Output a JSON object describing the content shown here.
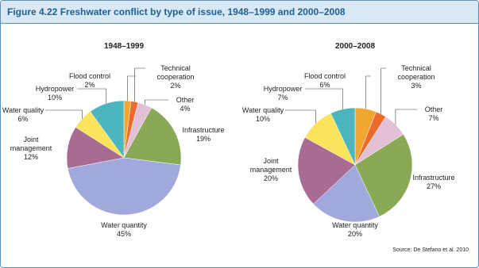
{
  "title": "Figure 4.22 Freshwater conflict by type of issue, 1948–1999 and 2000–2008",
  "source": "Source: De Stefano et al. 2010",
  "chart_data": [
    {
      "type": "pie",
      "title": "1948–1999",
      "categories": [
        "Flood control",
        "Technical cooperation",
        "Other",
        "Infrastructure",
        "Water quantity",
        "Joint management",
        "Water quality",
        "Hydropower"
      ],
      "values": [
        2,
        2,
        4,
        19,
        45,
        12,
        6,
        10
      ],
      "value_labels": [
        "2%",
        "2%",
        "4%",
        "19%",
        "45%",
        "12%",
        "6%",
        "10%"
      ],
      "colors": [
        "#f2a632",
        "#ec6a2c",
        "#e2c0d6",
        "#8aa957",
        "#a0a8dc",
        "#a86b93",
        "#fbe35c",
        "#4db5bf"
      ]
    },
    {
      "type": "pie",
      "title": "2000–2008",
      "categories": [
        "Flood control",
        "Technical cooperation",
        "Other",
        "Infrastructure",
        "Water quantity",
        "Joint management",
        "Water quality",
        "Hydropower"
      ],
      "values": [
        6,
        3,
        7,
        27,
        20,
        20,
        10,
        7
      ],
      "value_labels": [
        "6%",
        "3%",
        "7%",
        "27%",
        "20%",
        "20%",
        "10%",
        "7%"
      ],
      "colors": [
        "#f2a632",
        "#ec6a2c",
        "#e2c0d6",
        "#8aa957",
        "#a0a8dc",
        "#a86b93",
        "#fbe35c",
        "#4db5bf"
      ]
    }
  ]
}
